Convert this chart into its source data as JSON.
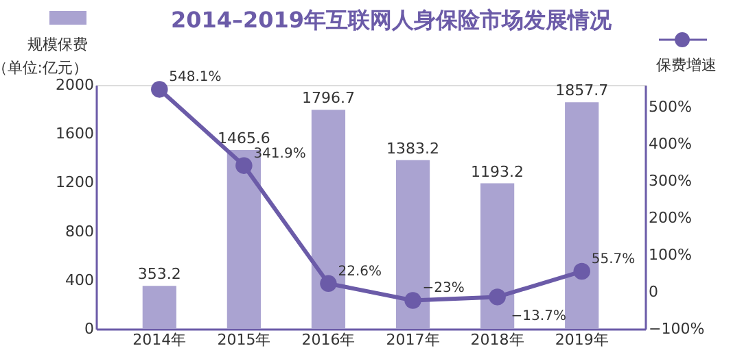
{
  "chart_data": {
    "type": "bar",
    "title": "2014–2019年互联网人身保险市场发展情况",
    "ylabel": "（单位:亿元）",
    "categories": [
      "2014年",
      "2015年",
      "2016年",
      "2017年",
      "2018年",
      "2019年"
    ],
    "series": [
      {
        "name": "规模保费",
        "color": "#aaa3d1",
        "values": [
          353.2,
          1465.6,
          1796.7,
          1383.2,
          1193.2,
          1857.7
        ],
        "value_labels": [
          "353.2",
          "1465.6",
          "1796.7",
          "1383.2",
          "1193.2",
          "1857.7"
        ]
      },
      {
        "name": "保费增速",
        "type": "line",
        "axis": "y2",
        "color": "#6b5ba8",
        "marker": "circle",
        "values": [
          548.1,
          341.9,
          22.6,
          -23,
          -13.7,
          55.7
        ],
        "value_labels": [
          "548.1%",
          "341.9%",
          "22.6%",
          "−23%",
          "−13.7%",
          "55.7%"
        ]
      }
    ],
    "ylim": [
      0,
      2000
    ],
    "yticks": [
      0,
      400,
      800,
      1200,
      1600,
      2000
    ],
    "y2lim": [
      -100,
      560
    ],
    "y2ticks": [
      {
        "value": -100,
        "label": "−100%"
      },
      0,
      {
        "value": 100,
        "label": "100%"
      },
      {
        "value": 200,
        "label": "200%"
      },
      {
        "value": 300,
        "label": "300%"
      },
      {
        "value": 400,
        "label": "400%"
      },
      {
        "value": 500,
        "label": "500%"
      }
    ],
    "grid": false,
    "legend": "top"
  }
}
